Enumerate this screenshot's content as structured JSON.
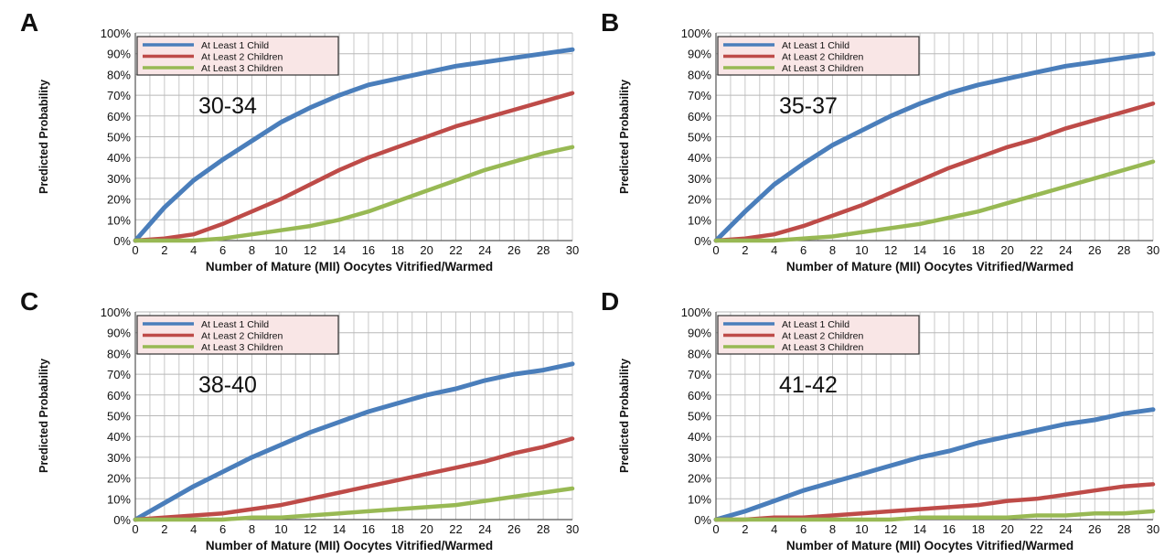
{
  "chart_data": [
    {
      "panel_letter": "A",
      "type": "line",
      "annotation": "30-34",
      "xlabel": "Number of Mature (MII) Oocytes Vitrified/Warmed",
      "ylabel": "Predicted Probability",
      "xlim": [
        0,
        30
      ],
      "ylim": [
        0,
        100
      ],
      "x_ticks": [
        "0",
        "2",
        "4",
        "6",
        "8",
        "10",
        "12",
        "14",
        "16",
        "18",
        "20",
        "22",
        "24",
        "26",
        "28",
        "30"
      ],
      "y_ticks": [
        "0%",
        "10%",
        "20%",
        "30%",
        "40%",
        "50%",
        "60%",
        "70%",
        "80%",
        "90%",
        "100%"
      ],
      "grid": true,
      "legend_position": "top-left",
      "x": [
        0,
        2,
        4,
        6,
        8,
        10,
        12,
        14,
        16,
        18,
        20,
        22,
        24,
        26,
        28,
        30
      ],
      "series": [
        {
          "name": "At Least 1 Child",
          "color": "#4a7ebb",
          "values": [
            0,
            16,
            29,
            39,
            48,
            57,
            64,
            70,
            75,
            78,
            81,
            84,
            86,
            88,
            90,
            92
          ]
        },
        {
          "name": "At Least 2 Children",
          "color": "#be4b48",
          "values": [
            0,
            1,
            3,
            8,
            14,
            20,
            27,
            34,
            40,
            45,
            50,
            55,
            59,
            63,
            67,
            71
          ]
        },
        {
          "name": "At Least 3 Children",
          "color": "#98b954",
          "values": [
            0,
            0,
            0,
            1,
            3,
            5,
            7,
            10,
            14,
            19,
            24,
            29,
            34,
            38,
            42,
            45
          ]
        }
      ]
    },
    {
      "panel_letter": "B",
      "type": "line",
      "annotation": "35-37",
      "xlabel": "Number of Mature (MII) Oocytes Vitrified/Warmed",
      "ylabel": "Predicted Probability",
      "xlim": [
        0,
        30
      ],
      "ylim": [
        0,
        100
      ],
      "x_ticks": [
        "0",
        "2",
        "4",
        "6",
        "8",
        "10",
        "12",
        "14",
        "16",
        "18",
        "20",
        "22",
        "24",
        "26",
        "28",
        "30"
      ],
      "y_ticks": [
        "0%",
        "10%",
        "20%",
        "30%",
        "40%",
        "50%",
        "60%",
        "70%",
        "80%",
        "90%",
        "100%"
      ],
      "grid": true,
      "legend_position": "top-left",
      "x": [
        0,
        2,
        4,
        6,
        8,
        10,
        12,
        14,
        16,
        18,
        20,
        22,
        24,
        26,
        28,
        30
      ],
      "series": [
        {
          "name": "At Least 1 Child",
          "color": "#4a7ebb",
          "values": [
            0,
            14,
            27,
            37,
            46,
            53,
            60,
            66,
            71,
            75,
            78,
            81,
            84,
            86,
            88,
            90
          ]
        },
        {
          "name": "At Least 2 Children",
          "color": "#be4b48",
          "values": [
            0,
            1,
            3,
            7,
            12,
            17,
            23,
            29,
            35,
            40,
            45,
            49,
            54,
            58,
            62,
            66
          ]
        },
        {
          "name": "At Least 3 Children",
          "color": "#98b954",
          "values": [
            0,
            0,
            0,
            1,
            2,
            4,
            6,
            8,
            11,
            14,
            18,
            22,
            26,
            30,
            34,
            38
          ]
        }
      ]
    },
    {
      "panel_letter": "C",
      "type": "line",
      "annotation": "38-40",
      "xlabel": "Number of Mature (MII) Oocytes Vitrified/Warmed",
      "ylabel": "Predicted Probability",
      "xlim": [
        0,
        30
      ],
      "ylim": [
        0,
        100
      ],
      "x_ticks": [
        "0",
        "2",
        "4",
        "6",
        "8",
        "10",
        "12",
        "14",
        "16",
        "18",
        "20",
        "22",
        "24",
        "26",
        "28",
        "30"
      ],
      "y_ticks": [
        "0%",
        "10%",
        "20%",
        "30%",
        "40%",
        "50%",
        "60%",
        "70%",
        "80%",
        "90%",
        "100%"
      ],
      "grid": true,
      "legend_position": "top-left",
      "x": [
        0,
        2,
        4,
        6,
        8,
        10,
        12,
        14,
        16,
        18,
        20,
        22,
        24,
        26,
        28,
        30
      ],
      "series": [
        {
          "name": "At Least 1 Child",
          "color": "#4a7ebb",
          "values": [
            0,
            8,
            16,
            23,
            30,
            36,
            42,
            47,
            52,
            56,
            60,
            63,
            67,
            70,
            72,
            75
          ]
        },
        {
          "name": "At Least 2 Children",
          "color": "#be4b48",
          "values": [
            0,
            1,
            2,
            3,
            5,
            7,
            10,
            13,
            16,
            19,
            22,
            25,
            28,
            32,
            35,
            39
          ]
        },
        {
          "name": "At Least 3 Children",
          "color": "#98b954",
          "values": [
            0,
            0,
            0,
            0,
            1,
            1,
            2,
            3,
            4,
            5,
            6,
            7,
            9,
            11,
            13,
            15
          ]
        }
      ]
    },
    {
      "panel_letter": "D",
      "type": "line",
      "annotation": "41-42",
      "xlabel": "Number of Mature (MII) Oocytes Vitrified/Warmed",
      "ylabel": "Predicted Probability",
      "xlim": [
        0,
        30
      ],
      "ylim": [
        0,
        100
      ],
      "x_ticks": [
        "0",
        "2",
        "4",
        "6",
        "8",
        "10",
        "12",
        "14",
        "16",
        "18",
        "20",
        "22",
        "24",
        "26",
        "28",
        "30"
      ],
      "y_ticks": [
        "0%",
        "10%",
        "20%",
        "30%",
        "40%",
        "50%",
        "60%",
        "70%",
        "80%",
        "90%",
        "100%"
      ],
      "grid": true,
      "legend_position": "top-left",
      "x": [
        0,
        2,
        4,
        6,
        8,
        10,
        12,
        14,
        16,
        18,
        20,
        22,
        24,
        26,
        28,
        30
      ],
      "series": [
        {
          "name": "At Least 1 Child",
          "color": "#4a7ebb",
          "values": [
            0,
            4,
            9,
            14,
            18,
            22,
            26,
            30,
            33,
            37,
            40,
            43,
            46,
            48,
            51,
            53
          ]
        },
        {
          "name": "At Least 2 Children",
          "color": "#be4b48",
          "values": [
            0,
            0,
            1,
            1,
            2,
            3,
            4,
            5,
            6,
            7,
            9,
            10,
            12,
            14,
            16,
            17
          ]
        },
        {
          "name": "At Least 3 Children",
          "color": "#98b954",
          "values": [
            0,
            0,
            0,
            0,
            0,
            0,
            0,
            1,
            1,
            1,
            1,
            2,
            2,
            3,
            3,
            4
          ]
        }
      ]
    }
  ]
}
